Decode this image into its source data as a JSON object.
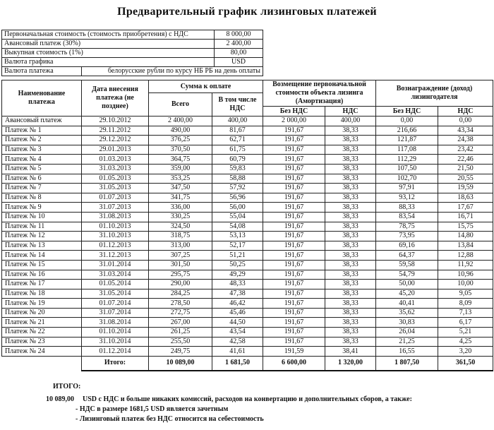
{
  "title": "Предварительный график лизинговых платежей",
  "summary": [
    {
      "label": "Первоначальная стоимость (стоимость приобретения) с НДС",
      "value": "8 000,00"
    },
    {
      "label": "Авансовый платеж (30%)",
      "value": "2 400,00"
    },
    {
      "label": "Выкупная стоимость (1%)",
      "value": "80,00"
    },
    {
      "label": "Валюта графика",
      "value": "USD"
    }
  ],
  "payment_currency": {
    "label": "Валюта платежа",
    "value": "белорусские рубли по курсу НБ РБ на день оплаты"
  },
  "headers": {
    "name": "Наименование платежа",
    "date": "Дата внесения платежа (не позднее)",
    "sum": "Сумма к оплате",
    "sum_total": "Всего",
    "sum_vat": "В том числе НДС",
    "amort": "Возмещение первоначальной стоимости объекта лизинга (Амортизация)",
    "reward": "Вознаграждение (доход) лизингодателя",
    "no_vat": "Без НДС",
    "vat": "НДС"
  },
  "rows": [
    [
      "Авансовый платеж",
      "29.10.2012",
      "2 400,00",
      "400,00",
      "2 000,00",
      "400,00",
      "0,00",
      "0,00"
    ],
    [
      "Платеж № 1",
      "29.11.2012",
      "490,00",
      "81,67",
      "191,67",
      "38,33",
      "216,66",
      "43,34"
    ],
    [
      "Платеж № 2",
      "29.12.2012",
      "376,25",
      "62,71",
      "191,67",
      "38,33",
      "121,87",
      "24,38"
    ],
    [
      "Платеж № 3",
      "29.01.2013",
      "370,50",
      "61,75",
      "191,67",
      "38,33",
      "117,08",
      "23,42"
    ],
    [
      "Платеж № 4",
      "01.03.2013",
      "364,75",
      "60,79",
      "191,67",
      "38,33",
      "112,29",
      "22,46"
    ],
    [
      "Платеж № 5",
      "31.03.2013",
      "359,00",
      "59,83",
      "191,67",
      "38,33",
      "107,50",
      "21,50"
    ],
    [
      "Платеж № 6",
      "01.05.2013",
      "353,25",
      "58,88",
      "191,67",
      "38,33",
      "102,70",
      "20,55"
    ],
    [
      "Платеж № 7",
      "31.05.2013",
      "347,50",
      "57,92",
      "191,67",
      "38,33",
      "97,91",
      "19,59"
    ],
    [
      "Платеж № 8",
      "01.07.2013",
      "341,75",
      "56,96",
      "191,67",
      "38,33",
      "93,12",
      "18,63"
    ],
    [
      "Платеж № 9",
      "31.07.2013",
      "336,00",
      "56,00",
      "191,67",
      "38,33",
      "88,33",
      "17,67"
    ],
    [
      "Платеж № 10",
      "31.08.2013",
      "330,25",
      "55,04",
      "191,67",
      "38,33",
      "83,54",
      "16,71"
    ],
    [
      "Платеж № 11",
      "01.10.2013",
      "324,50",
      "54,08",
      "191,67",
      "38,33",
      "78,75",
      "15,75"
    ],
    [
      "Платеж № 12",
      "31.10.2013",
      "318,75",
      "53,13",
      "191,67",
      "38,33",
      "73,95",
      "14,80"
    ],
    [
      "Платеж № 13",
      "01.12.2013",
      "313,00",
      "52,17",
      "191,67",
      "38,33",
      "69,16",
      "13,84"
    ],
    [
      "Платеж № 14",
      "31.12.2013",
      "307,25",
      "51,21",
      "191,67",
      "38,33",
      "64,37",
      "12,88"
    ],
    [
      "Платеж № 15",
      "31.01.2014",
      "301,50",
      "50,25",
      "191,67",
      "38,33",
      "59,58",
      "11,92"
    ],
    [
      "Платеж № 16",
      "31.03.2014",
      "295,75",
      "49,29",
      "191,67",
      "38,33",
      "54,79",
      "10,96"
    ],
    [
      "Платеж № 17",
      "01.05.2014",
      "290,00",
      "48,33",
      "191,67",
      "38,33",
      "50,00",
      "10,00"
    ],
    [
      "Платеж № 18",
      "31.05.2014",
      "284,25",
      "47,38",
      "191,67",
      "38,33",
      "45,20",
      "9,05"
    ],
    [
      "Платеж № 19",
      "01.07.2014",
      "278,50",
      "46,42",
      "191,67",
      "38,33",
      "40,41",
      "8,09"
    ],
    [
      "Платеж № 20",
      "31.07.2014",
      "272,75",
      "45,46",
      "191,67",
      "38,33",
      "35,62",
      "7,13"
    ],
    [
      "Платеж № 21",
      "31.08.2014",
      "267,00",
      "44,50",
      "191,67",
      "38,33",
      "30,83",
      "6,17"
    ],
    [
      "Платеж № 22",
      "01.10.2014",
      "261,25",
      "43,54",
      "191,67",
      "38,33",
      "26,04",
      "5,21"
    ],
    [
      "Платеж № 23",
      "31.10.2014",
      "255,50",
      "42,58",
      "191,67",
      "38,33",
      "21,25",
      "4,25"
    ],
    [
      "Платеж № 24",
      "01.12.2014",
      "249,75",
      "41,61",
      "191,59",
      "38,41",
      "16,55",
      "3,20"
    ]
  ],
  "totals": [
    "Итого:",
    "10 089,00",
    "1 681,50",
    "6 600,00",
    "1 320,00",
    "1 807,50",
    "361,50"
  ],
  "footer": {
    "heading": "ИТОГО:",
    "amount": "10 089,00",
    "line1": "USD с НДС и больше никаких комиссий, расходов на конвертацию и дополнительных сборов, а также:",
    "bullet1": "-  НДС в размере 1681,5 USD является зачетным",
    "bullet2": "-  Лизинговый платеж без НДС относится на себестоимость"
  }
}
